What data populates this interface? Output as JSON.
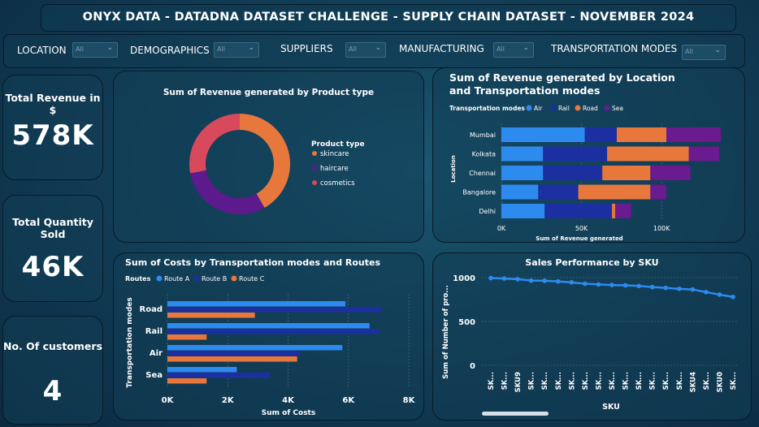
{
  "header": {
    "title": "ONYX DATA - DATADNA DATASET CHALLENGE - SUPPLY CHAIN DATASET - NOVEMBER 2024"
  },
  "filters": [
    {
      "label": "LOCATION",
      "value": "All"
    },
    {
      "label": "DEMOGRAPHICS",
      "value": "All"
    },
    {
      "label": "SUPPLIERS",
      "value": "All"
    },
    {
      "label": "MANUFACTURING",
      "value": "All"
    },
    {
      "label": "TRANSPORTATION MODES",
      "value": "All"
    }
  ],
  "kpis": [
    {
      "title": "Total Revenue in $",
      "value": "578K"
    },
    {
      "title": "Total Quantity Sold",
      "value": "46K"
    },
    {
      "title": "No. Of customers",
      "value": "4"
    }
  ],
  "colors": {
    "air": "#2d8bf0",
    "rail": "#1c2fa0",
    "road": "#e8773c",
    "sea": "#6a1b8f",
    "skincare": "#e8773c",
    "haircare": "#5c1a8c",
    "cosmetics": "#d9495c",
    "routeA": "#2d8bf0",
    "routeB": "#1c2fa0",
    "routeC": "#e8773c",
    "line": "#2d8bf0"
  },
  "chart_data": [
    {
      "type": "pie",
      "title": "Sum of Revenue generated by Product type",
      "legend_title": "Product type",
      "categories": [
        "skincare",
        "haircare",
        "cosmetics"
      ],
      "values": [
        241629,
        174455,
        161521
      ],
      "legend_position": "right"
    },
    {
      "type": "bar",
      "orientation": "horizontal",
      "stacked": true,
      "title": "Sum of Revenue generated by Location and Transportation modes",
      "legend_title": "Transportation modes",
      "categories": [
        "Mumbai",
        "Kolkata",
        "Chennai",
        "Bangalore",
        "Delhi"
      ],
      "series": [
        {
          "name": "Air",
          "values": [
            52000,
            26000,
            26000,
            23000,
            27000
          ]
        },
        {
          "name": "Rail",
          "values": [
            20000,
            40000,
            37000,
            25000,
            42000
          ]
        },
        {
          "name": "Road",
          "values": [
            31000,
            51000,
            30000,
            45000,
            2000
          ]
        },
        {
          "name": "Sea",
          "values": [
            34000,
            19000,
            25000,
            10000,
            10000
          ]
        }
      ],
      "xlabel": "Sum of Revenue generated",
      "ylabel": "Location",
      "xlim": [
        0,
        140000
      ],
      "xticks": [
        "0K",
        "50K",
        "100K"
      ],
      "legend_position": "top-left"
    },
    {
      "type": "bar",
      "orientation": "horizontal",
      "title": "Sum of Costs by Transportation modes and Routes",
      "legend_title": "Routes",
      "categories": [
        "Road",
        "Rail",
        "Air",
        "Sea"
      ],
      "series": [
        {
          "name": "Route A",
          "values": [
            5900,
            6700,
            5800,
            2300
          ]
        },
        {
          "name": "Route B",
          "values": [
            7100,
            7000,
            4400,
            3400
          ]
        },
        {
          "name": "Route C",
          "values": [
            2900,
            1300,
            4300,
            1300
          ]
        }
      ],
      "xlabel": "Sum of Costs",
      "ylabel": "Transportation modes",
      "xlim": [
        0,
        8000
      ],
      "xticks": [
        "0K",
        "2K",
        "4K",
        "6K",
        "8K"
      ],
      "legend_position": "top-left"
    },
    {
      "type": "line",
      "title": "Sales Performance by SKU",
      "categories": [
        "SK...",
        "SK...",
        "SKU9",
        "SK...",
        "SK...",
        "SK...",
        "SK...",
        "SK...",
        "SK...",
        "SK...",
        "SK...",
        "SK...",
        "SK...",
        "SK...",
        "SK...",
        "SKU4",
        "SK...",
        "SKU0",
        "SK..."
      ],
      "values": [
        995,
        990,
        982,
        966,
        964,
        957,
        946,
        930,
        922,
        916,
        912,
        905,
        892,
        883,
        872,
        865,
        835,
        806,
        780
      ],
      "xlabel": "SKU",
      "ylabel": "Sum of Number of pro...",
      "ylim": [
        0,
        1000
      ],
      "yticks": [
        "0",
        "500",
        "1000"
      ]
    }
  ]
}
